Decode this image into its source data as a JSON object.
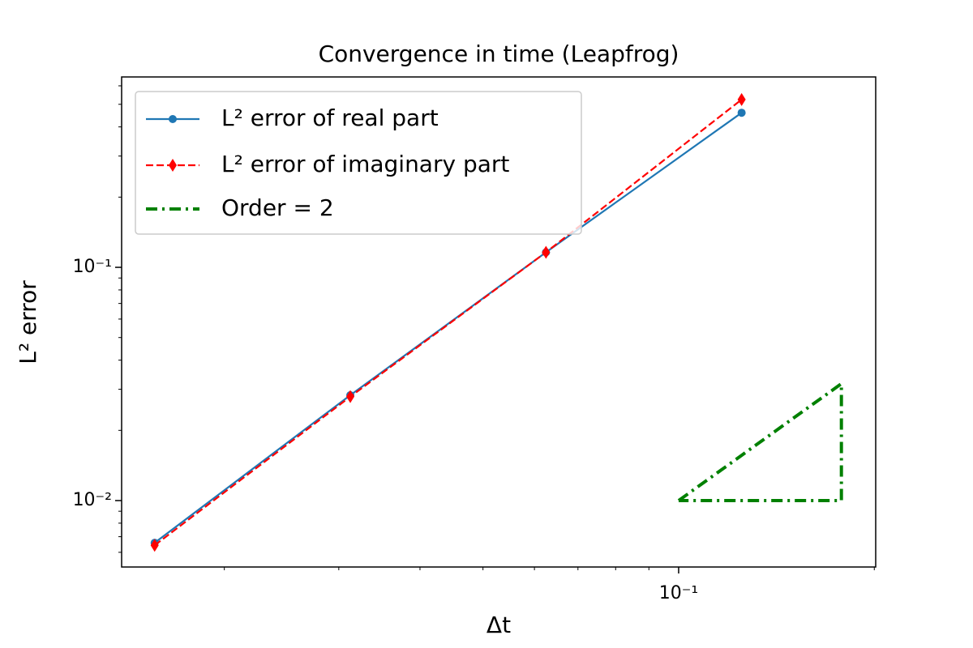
{
  "chart_data": {
    "type": "line",
    "title": "Convergence in time (Leapfrog)",
    "xlabel": "Δt",
    "ylabel": "L² error",
    "log_x": true,
    "log_y": true,
    "xlim": [
      0.0139,
      0.201
    ],
    "ylim": [
      0.00519,
      0.655
    ],
    "xticks": [
      {
        "value": 0.1,
        "label": "10⁻¹"
      }
    ],
    "xminorticks": [
      0.02,
      0.03,
      0.04,
      0.05,
      0.06,
      0.07,
      0.08,
      0.09,
      0.2
    ],
    "yticks": [
      {
        "value": 0.01,
        "label": "10⁻²"
      },
      {
        "value": 0.1,
        "label": "10⁻¹"
      }
    ],
    "yminorticks": [
      0.006,
      0.007,
      0.008,
      0.009,
      0.02,
      0.03,
      0.04,
      0.05,
      0.06,
      0.07,
      0.08,
      0.09,
      0.2,
      0.3,
      0.4,
      0.5,
      0.6
    ],
    "legend": "upper left",
    "series": [
      {
        "name": "L² error of real part",
        "color": "#1f77b4",
        "linestyle": "solid",
        "marker": "circle",
        "x": [
          0.015625,
          0.03125,
          0.0625,
          0.125
        ],
        "values": [
          0.00659,
          0.0283,
          0.116,
          0.46
        ]
      },
      {
        "name": "L² error of imaginary part",
        "color": "#ff0000",
        "linestyle": "dashed",
        "marker": "thin_diamond",
        "x": [
          0.015625,
          0.03125,
          0.0625,
          0.125
        ],
        "values": [
          0.00643,
          0.0279,
          0.116,
          0.524
        ]
      },
      {
        "name": "Order = 2",
        "color": "#008000",
        "linestyle": "dashdot",
        "marker": "none",
        "x": [
          0.1,
          0.178,
          0.178,
          0.1
        ],
        "values": [
          0.01,
          0.0317,
          0.01,
          0.01
        ]
      }
    ]
  }
}
